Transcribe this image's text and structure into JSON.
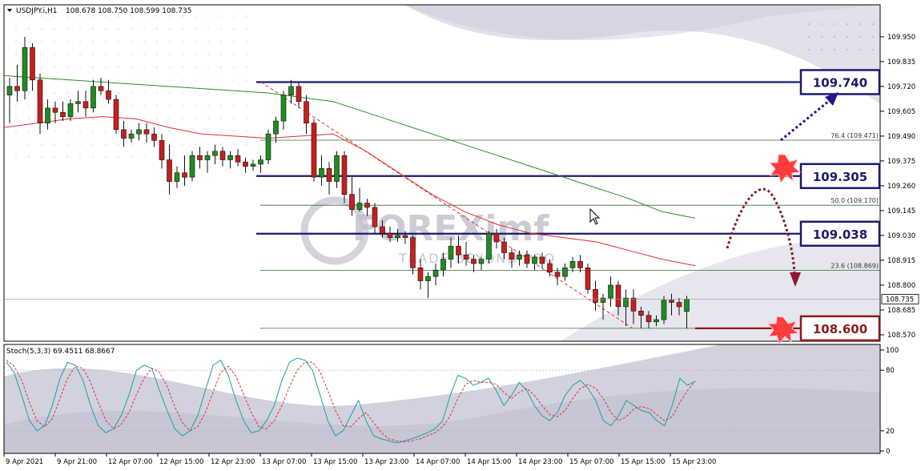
{
  "chart_data": [
    {
      "type": "candlestick",
      "symbol_header": "USDJPY.i,H1",
      "ohlc_header": "108.678 108.750 108.599 108.735",
      "y_ticks": [
        "109.950",
        "109.835",
        "109.720",
        "109.605",
        "109.490",
        "109.375",
        "109.260",
        "109.145",
        "109.030",
        "108.915",
        "108.800",
        "108.685",
        "108.570"
      ],
      "ylim": [
        108.555,
        110.02
      ],
      "x_ticks": [
        "9 Apr 2021",
        "9 Apr 21:00",
        "12 Apr 07:00",
        "12 Apr 15:00",
        "12 Apr 23:00",
        "13 Apr 07:00",
        "13 Apr 15:00",
        "13 Apr 23:00",
        "14 Apr 07:00",
        "14 Apr 15:00",
        "14 Apr 23:00",
        "15 Apr 07:00",
        "15 Apr 15:00",
        "15 Apr 23:00"
      ],
      "last_price": "108.735",
      "candles": [
        [
          109.68,
          109.76,
          109.55,
          109.72
        ],
        [
          109.72,
          109.82,
          109.65,
          109.7
        ],
        [
          109.7,
          109.95,
          109.66,
          109.9
        ],
        [
          109.9,
          109.92,
          109.7,
          109.75
        ],
        [
          109.75,
          109.78,
          109.5,
          109.55
        ],
        [
          109.55,
          109.66,
          109.52,
          109.62
        ],
        [
          109.62,
          109.65,
          109.55,
          109.6
        ],
        [
          109.6,
          109.65,
          109.56,
          109.58
        ],
        [
          109.58,
          109.66,
          109.56,
          109.64
        ],
        [
          109.64,
          109.7,
          109.6,
          109.65
        ],
        [
          109.65,
          109.7,
          109.58,
          109.62
        ],
        [
          109.62,
          109.75,
          109.6,
          109.72
        ],
        [
          109.72,
          109.76,
          109.68,
          109.7
        ],
        [
          109.7,
          109.75,
          109.64,
          109.66
        ],
        [
          109.66,
          109.68,
          109.5,
          109.52
        ],
        [
          109.52,
          109.56,
          109.44,
          109.48
        ],
        [
          109.48,
          109.52,
          109.46,
          109.5
        ],
        [
          109.5,
          109.55,
          109.47,
          109.52
        ],
        [
          109.52,
          109.55,
          109.46,
          109.5
        ],
        [
          109.5,
          109.53,
          109.44,
          109.47
        ],
        [
          109.47,
          109.5,
          109.34,
          109.38
        ],
        [
          109.38,
          109.45,
          109.22,
          109.28
        ],
        [
          109.28,
          109.35,
          109.25,
          109.32
        ],
        [
          109.32,
          109.4,
          109.26,
          109.3
        ],
        [
          109.3,
          109.42,
          109.28,
          109.4
        ],
        [
          109.4,
          109.44,
          109.34,
          109.38
        ],
        [
          109.38,
          109.42,
          109.32,
          109.4
        ],
        [
          109.4,
          109.45,
          109.36,
          109.42
        ],
        [
          109.42,
          109.44,
          109.35,
          109.38
        ],
        [
          109.38,
          109.42,
          109.34,
          109.4
        ],
        [
          109.4,
          109.43,
          109.35,
          109.37
        ],
        [
          109.37,
          109.39,
          109.32,
          109.35
        ],
        [
          109.35,
          109.38,
          109.33,
          109.36
        ],
        [
          109.36,
          109.4,
          109.32,
          109.38
        ],
        [
          109.38,
          109.52,
          109.36,
          109.5
        ],
        [
          109.5,
          109.58,
          109.46,
          109.56
        ],
        [
          109.56,
          109.7,
          109.52,
          109.68
        ],
        [
          109.68,
          109.75,
          109.64,
          109.72
        ],
        [
          109.72,
          109.74,
          109.62,
          109.65
        ],
        [
          109.65,
          109.68,
          109.5,
          109.55
        ],
        [
          109.55,
          109.57,
          109.28,
          109.3
        ],
        [
          109.3,
          109.4,
          109.26,
          109.34
        ],
        [
          109.34,
          109.37,
          109.22,
          109.28
        ],
        [
          109.28,
          109.42,
          109.25,
          109.4
        ],
        [
          109.4,
          109.42,
          109.18,
          109.22
        ],
        [
          109.22,
          109.3,
          109.12,
          109.15
        ],
        [
          109.15,
          109.25,
          109.14,
          109.18
        ],
        [
          109.18,
          109.2,
          109.12,
          109.16
        ],
        [
          109.16,
          109.18,
          109.04,
          109.07
        ],
        [
          109.07,
          109.1,
          109.02,
          109.04
        ],
        [
          109.04,
          109.07,
          109.0,
          109.02
        ],
        [
          109.02,
          109.06,
          109.0,
          109.03
        ],
        [
          109.03,
          109.05,
          108.99,
          109.02
        ],
        [
          109.02,
          109.03,
          108.85,
          108.88
        ],
        [
          108.88,
          108.92,
          108.78,
          108.82
        ],
        [
          108.82,
          108.86,
          108.74,
          108.84
        ],
        [
          108.84,
          108.9,
          108.8,
          108.87
        ],
        [
          108.87,
          108.95,
          108.84,
          108.92
        ],
        [
          108.92,
          109.02,
          108.88,
          108.98
        ],
        [
          108.98,
          109.03,
          108.9,
          108.94
        ],
        [
          108.94,
          109.0,
          108.89,
          108.92
        ],
        [
          108.92,
          108.94,
          108.86,
          108.9
        ],
        [
          108.9,
          108.93,
          108.87,
          108.92
        ],
        [
          108.92,
          109.05,
          108.9,
          109.04
        ],
        [
          109.04,
          109.06,
          108.97,
          109.0
        ],
        [
          109.0,
          109.02,
          108.92,
          108.95
        ],
        [
          108.95,
          108.97,
          108.88,
          108.92
        ],
        [
          108.92,
          108.96,
          108.89,
          108.94
        ],
        [
          108.94,
          108.96,
          108.88,
          108.9
        ],
        [
          108.9,
          108.94,
          108.87,
          108.93
        ],
        [
          108.93,
          108.95,
          108.88,
          108.9
        ],
        [
          108.9,
          108.92,
          108.84,
          108.86
        ],
        [
          108.86,
          108.88,
          108.8,
          108.84
        ],
        [
          108.84,
          108.9,
          108.82,
          108.88
        ],
        [
          108.88,
          108.93,
          108.86,
          108.91
        ],
        [
          108.91,
          108.94,
          108.86,
          108.88
        ],
        [
          108.88,
          108.9,
          108.76,
          108.78
        ],
        [
          108.78,
          108.82,
          108.68,
          108.72
        ],
        [
          108.72,
          108.76,
          108.64,
          108.74
        ],
        [
          108.74,
          108.84,
          108.7,
          108.8
        ],
        [
          108.8,
          108.82,
          108.66,
          108.7
        ],
        [
          108.7,
          108.78,
          108.61,
          108.74
        ],
        [
          108.74,
          108.78,
          108.62,
          108.68
        ],
        [
          108.68,
          108.7,
          108.6,
          108.66
        ],
        [
          108.66,
          108.68,
          108.6,
          108.63
        ],
        [
          108.63,
          108.66,
          108.61,
          108.64
        ],
        [
          108.64,
          108.75,
          108.62,
          108.73
        ],
        [
          108.73,
          108.76,
          108.66,
          108.72
        ],
        [
          108.72,
          108.74,
          108.66,
          108.7
        ],
        [
          108.678,
          108.75,
          108.599,
          108.735
        ]
      ],
      "moving_averages": [
        {
          "color": "#2e8b2e",
          "values": [
            109.77,
            109.76,
            109.75,
            109.74,
            109.73,
            109.72,
            109.71,
            109.7,
            109.69,
            109.67,
            109.65,
            109.6,
            109.55,
            109.5,
            109.45,
            109.4,
            109.35,
            109.3,
            109.25,
            109.2,
            109.14,
            109.11
          ]
        },
        {
          "color": "#e03030",
          "values": [
            109.53,
            109.55,
            109.57,
            109.58,
            109.57,
            109.53,
            109.5,
            109.49,
            109.48,
            109.49,
            109.5,
            109.42,
            109.32,
            109.22,
            109.14,
            109.08,
            109.04,
            109.02,
            109.0,
            108.96,
            108.92,
            108.89
          ]
        }
      ],
      "trendline": {
        "color": "#e03030",
        "from": [
          109.72,
          109.74
        ],
        "to": [
          108.6,
          108.6
        ]
      },
      "fibonacci": [
        {
          "level": "76.4",
          "price": 109.471,
          "label": "76.4 (109.471)"
        },
        {
          "level": "50.0",
          "price": 109.17,
          "label": "50.0 (109.170)"
        },
        {
          "level": "23.6",
          "price": 108.869,
          "label": "23.6 (108.869)"
        }
      ],
      "fib_extra_lines": [
        109.74,
        108.6
      ],
      "horizontal_levels": [
        {
          "price": 109.74,
          "label": "109.740",
          "color": "#1a1a6e"
        },
        {
          "price": 109.305,
          "label": "109.305",
          "color": "#1a1a6e"
        },
        {
          "price": 109.038,
          "label": "109.038",
          "color": "#1a1a6e"
        },
        {
          "price": 108.6,
          "label": "108.600",
          "color": "#8b1a1a"
        }
      ],
      "watermark": {
        "brand": "FOREXimf",
        "tagline": "TRADE BEYOND PRO"
      }
    },
    {
      "type": "line",
      "name_header": "Stoch(5,3,3) 69.4511 68.8667",
      "y_ticks": [
        "100",
        "80",
        "20",
        "0"
      ],
      "ylim": [
        0,
        100
      ],
      "series": [
        {
          "color": "#1ba0a0",
          "values": [
            88,
            78,
            55,
            30,
            20,
            25,
            45,
            72,
            88,
            85,
            70,
            45,
            25,
            18,
            22,
            35,
            55,
            80,
            85,
            82,
            60,
            40,
            22,
            15,
            20,
            35,
            60,
            85,
            90,
            75,
            50,
            30,
            18,
            20,
            30,
            45,
            70,
            88,
            92,
            90,
            80,
            55,
            30,
            15,
            20,
            35,
            50,
            30,
            15,
            12,
            10,
            8,
            10,
            12,
            15,
            18,
            22,
            30,
            55,
            75,
            72,
            65,
            68,
            72,
            60,
            45,
            55,
            68,
            60,
            45,
            35,
            30,
            38,
            55,
            65,
            70,
            62,
            50,
            30,
            25,
            35,
            50,
            45,
            40,
            38,
            30,
            25,
            45,
            72,
            65,
            69
          ]
        },
        {
          "color": "#e03030",
          "values": [
            90,
            84,
            70,
            48,
            30,
            24,
            32,
            52,
            72,
            84,
            82,
            68,
            48,
            30,
            22,
            26,
            38,
            56,
            72,
            82,
            78,
            64,
            44,
            28,
            20,
            24,
            38,
            58,
            78,
            84,
            74,
            56,
            38,
            24,
            22,
            30,
            45,
            64,
            80,
            88,
            88,
            78,
            60,
            40,
            25,
            24,
            32,
            38,
            28,
            18,
            12,
            10,
            9,
            10,
            12,
            15,
            18,
            24,
            35,
            52,
            66,
            70,
            68,
            68,
            66,
            58,
            52,
            58,
            62,
            55,
            45,
            36,
            34,
            40,
            52,
            62,
            66,
            62,
            52,
            38,
            30,
            34,
            42,
            44,
            42,
            36,
            30,
            34,
            48,
            60,
            68.87
          ]
        }
      ]
    }
  ]
}
